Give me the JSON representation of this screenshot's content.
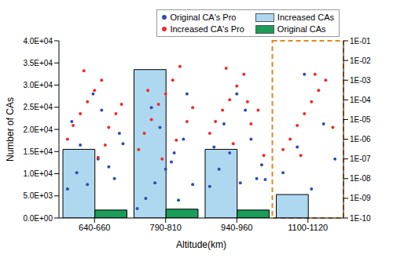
{
  "chart_data": {
    "type": "bar",
    "categories": [
      "640-660",
      "790-810",
      "940-960",
      "1100-1120"
    ],
    "x_label": "Altitude(km)",
    "y_label": "Number of CAs",
    "ylim": [
      0,
      40000
    ],
    "yticks": [
      {
        "value": 0,
        "label": "0.0E+00"
      },
      {
        "value": 5000,
        "label": "5.0E+03"
      },
      {
        "value": 10000,
        "label": "1.0E+04"
      },
      {
        "value": 15000,
        "label": "1.5E+04"
      },
      {
        "value": 20000,
        "label": "2.0E+04"
      },
      {
        "value": 25000,
        "label": "2.5E+04"
      },
      {
        "value": 30000,
        "label": "3.0E+04"
      },
      {
        "value": 35000,
        "label": "3.5E+04"
      },
      {
        "value": 40000,
        "label": "4.0E+04"
      }
    ],
    "y2lim": [
      1e-10,
      0.1
    ],
    "y2ticks": [
      {
        "value": 1e-10,
        "label": "1E-10"
      },
      {
        "value": 1e-09,
        "label": "1E-09"
      },
      {
        "value": 1e-08,
        "label": "1E-08"
      },
      {
        "value": 1e-07,
        "label": "1E-07"
      },
      {
        "value": 1e-06,
        "label": "1E-06"
      },
      {
        "value": 1e-05,
        "label": "1E-05"
      },
      {
        "value": 0.0001,
        "label": "1E-04"
      },
      {
        "value": 0.001,
        "label": "1E-03"
      },
      {
        "value": 0.01,
        "label": "1E-02"
      },
      {
        "value": 0.1,
        "label": "1E-01"
      }
    ],
    "log": "y2",
    "legend": "top-right",
    "series": [
      {
        "name": "Original CA's Pro",
        "type": "scatter",
        "axis": "y2",
        "color": "#2c4fa8",
        "marker": "circle",
        "points": [
          [
            0.12,
            3e-09
          ],
          [
            0.25,
            2e-08
          ],
          [
            0.4,
            5e-09
          ],
          [
            0.55,
            1e-07
          ],
          [
            0.7,
            4e-08
          ],
          [
            0.85,
            2e-06
          ],
          [
            0.3,
            5e-07
          ],
          [
            0.6,
            3e-05
          ],
          [
            0.78,
            1e-08
          ],
          [
            0.18,
            8e-06
          ],
          [
            0.48,
            0.0002
          ],
          [
            0.9,
            6e-07
          ],
          [
            1.1,
            3e-10
          ],
          [
            1.22,
            1e-09
          ],
          [
            1.35,
            6e-09
          ],
          [
            1.5,
            3e-08
          ],
          [
            1.62,
            2e-07
          ],
          [
            1.75,
            1e-06
          ],
          [
            1.88,
            5e-09
          ],
          [
            1.3,
            4e-05
          ],
          [
            1.58,
            7e-08
          ],
          [
            1.8,
            0.0002
          ],
          [
            1.42,
            4e-06
          ],
          [
            1.68,
            8e-10
          ],
          [
            2.12,
            4e-09
          ],
          [
            2.25,
            3e-08
          ],
          [
            2.4,
            2e-07
          ],
          [
            2.55,
            6e-09
          ],
          [
            2.7,
            1e-06
          ],
          [
            2.85,
            5e-08
          ],
          [
            2.32,
            6e-06
          ],
          [
            2.62,
            3e-05
          ],
          [
            2.78,
            1e-08
          ],
          [
            2.18,
            4e-07
          ],
          [
            2.5,
            0.0002
          ],
          [
            2.9,
            9e-09
          ],
          [
            3.15,
            2e-08
          ],
          [
            3.35,
            4e-07
          ],
          [
            3.55,
            3e-09
          ],
          [
            3.72,
            6e-06
          ],
          [
            3.88,
            1e-07
          ],
          [
            3.45,
            0.002
          ]
        ]
      },
      {
        "name": "Increased CAs",
        "type": "bar",
        "color": "#aed8f0",
        "values": [
          15500,
          33500,
          15500,
          5300
        ]
      },
      {
        "name": "Increased CA's Pro",
        "type": "scatter",
        "axis": "y2",
        "color": "#ee2b2b",
        "marker": "circle",
        "points": [
          [
            0.12,
            1e-06
          ],
          [
            0.2,
            5e-06
          ],
          [
            0.3,
            2e-05
          ],
          [
            0.4,
            8e-05
          ],
          [
            0.5,
            0.0003
          ],
          [
            0.6,
            0.001
          ],
          [
            0.7,
            4e-06
          ],
          [
            0.8,
            2e-05
          ],
          [
            0.88,
            6e-05
          ],
          [
            0.35,
            0.003
          ],
          [
            0.55,
            1.2e-07
          ],
          [
            0.65,
            5e-07
          ],
          [
            1.12,
            3e-07
          ],
          [
            1.2,
            2e-06
          ],
          [
            1.3,
            1e-05
          ],
          [
            1.4,
            6e-05
          ],
          [
            1.5,
            0.0002
          ],
          [
            1.6,
            0.001
          ],
          [
            1.7,
            0.005
          ],
          [
            1.8,
            8e-06
          ],
          [
            1.88,
            4e-05
          ],
          [
            1.45,
            1e-07
          ],
          [
            1.25,
            0.0003
          ],
          [
            1.65,
            9e-07
          ],
          [
            2.12,
            2e-06
          ],
          [
            2.2,
            8e-06
          ],
          [
            2.3,
            3e-05
          ],
          [
            2.4,
            0.0001
          ],
          [
            2.5,
            0.0005
          ],
          [
            2.6,
            0.002
          ],
          [
            2.7,
            6e-06
          ],
          [
            2.8,
            3e-05
          ],
          [
            2.88,
            1.5e-07
          ],
          [
            2.45,
            6e-07
          ],
          [
            2.35,
            0.004
          ],
          [
            2.65,
            8e-05
          ],
          [
            3.15,
            3e-07
          ],
          [
            3.25,
            1e-06
          ],
          [
            3.35,
            5e-06
          ],
          [
            3.45,
            2e-05
          ],
          [
            3.55,
            8e-05
          ],
          [
            3.65,
            0.0003
          ],
          [
            3.75,
            0.001
          ],
          [
            3.85,
            4e-06
          ],
          [
            3.4,
            1.5e-07
          ],
          [
            3.6,
            0.002
          ]
        ]
      },
      {
        "name": "Original CAs",
        "type": "bar",
        "color": "#1a9c5a",
        "values": [
          1800,
          2000,
          1800,
          0
        ]
      }
    ]
  }
}
